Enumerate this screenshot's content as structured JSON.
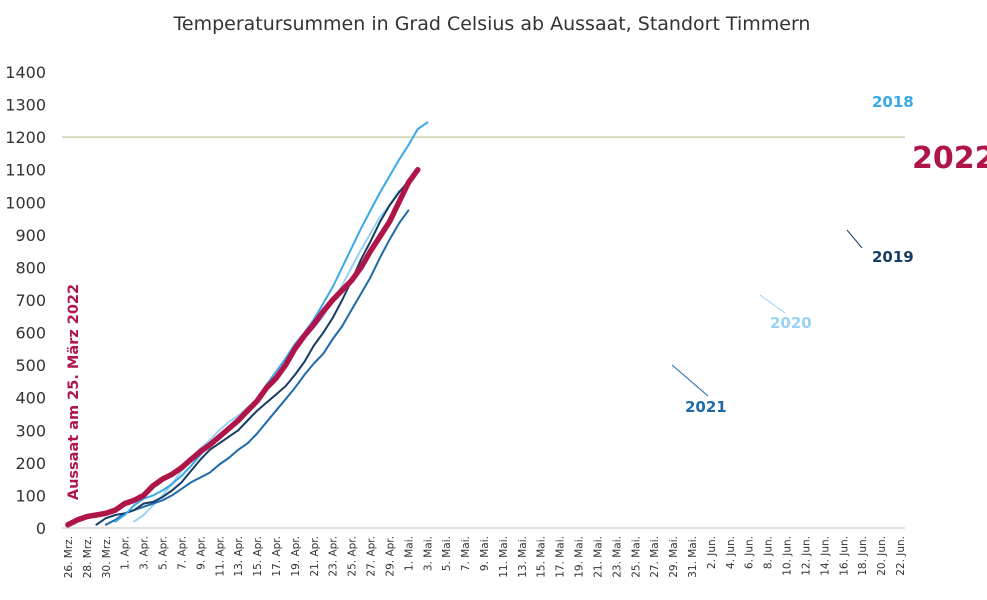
{
  "chart_data": {
    "type": "line",
    "title": "Temperatursummen in Grad Celsius ab Aussaat, Standort Timmern",
    "side_label": "Aussaat am 25. März 2022",
    "ylim": [
      0,
      1400
    ],
    "yticks": [
      0,
      100,
      200,
      300,
      400,
      500,
      600,
      700,
      800,
      900,
      1000,
      1100,
      1200,
      1300,
      1400
    ],
    "ytick_labels": [
      "0",
      "100",
      "200",
      "300",
      "400",
      "500",
      "600",
      "700",
      "800",
      "900",
      "1000",
      "1100",
      "1200",
      "1300",
      "1400"
    ],
    "x_categories": [
      "26. Mrz.",
      "28. Mrz.",
      "30. Mrz.",
      "1. Apr.",
      "3. Apr.",
      "5. Apr.",
      "7. Apr.",
      "9. Apr.",
      "11. Apr.",
      "13. Apr.",
      "15. Apr.",
      "17. Apr.",
      "19. Apr.",
      "21. Apr.",
      "23. Apr.",
      "25. Apr.",
      "27. Apr.",
      "29. Apr.",
      "1. Mai.",
      "3. Mai.",
      "5. Mai.",
      "7. Mai.",
      "9. Mai.",
      "11. Mai.",
      "13. Mai.",
      "15. Mai.",
      "17. Mai.",
      "19. Mai.",
      "21. Mai.",
      "23. Mai.",
      "25. Mai.",
      "27. Mai.",
      "29. Mai.",
      "31. Mai.",
      "2. Jun.",
      "4. Jun.",
      "6. Jun.",
      "8. Jun.",
      "10. Jun.",
      "12. Jun.",
      "14. Jun.",
      "16. Jun.",
      "18. Jun.",
      "20. Jun.",
      "22. Jun."
    ],
    "threshold": {
      "value": 1200,
      "color": "#c7d3a8"
    },
    "grid": false,
    "series": [
      {
        "name": "2018",
        "color": "#39a9e8",
        "width": 2,
        "values": [
          null,
          null,
          null,
          null,
          null,
          20,
          40,
          70,
          90,
          100,
          115,
          135,
          160,
          190,
          225,
          255,
          280,
          310,
          335,
          360,
          395,
          440,
          480,
          520,
          565,
          600,
          640,
          690,
          740,
          800,
          860,
          920,
          975,
          1030,
          1080,
          1130,
          1175,
          1225,
          1245
        ]
      },
      {
        "name": "2019",
        "color": "#163e64",
        "width": 2,
        "values": [
          null,
          null,
          null,
          10,
          30,
          40,
          45,
          55,
          75,
          80,
          95,
          115,
          140,
          175,
          210,
          240,
          260,
          280,
          300,
          330,
          360,
          385,
          410,
          435,
          470,
          510,
          560,
          600,
          645,
          700,
          760,
          825,
          880,
          940,
          990,
          1030,
          1065
        ]
      },
      {
        "name": "2020",
        "color": "#9bd1f2",
        "width": 2,
        "values": [
          null,
          null,
          null,
          null,
          null,
          null,
          null,
          20,
          40,
          70,
          100,
          135,
          175,
          205,
          245,
          270,
          300,
          325,
          345,
          370,
          395,
          430,
          460,
          500,
          545,
          585,
          615,
          650,
          700,
          745,
          800,
          855,
          905,
          955,
          990,
          1035
        ]
      },
      {
        "name": "2021",
        "color": "#1f6aa8",
        "width": 2,
        "values": [
          null,
          null,
          null,
          null,
          10,
          25,
          45,
          55,
          65,
          75,
          85,
          100,
          120,
          140,
          155,
          170,
          195,
          215,
          240,
          260,
          290,
          325,
          360,
          395,
          430,
          470,
          505,
          535,
          580,
          620,
          670,
          720,
          770,
          830,
          885,
          935,
          975
        ]
      },
      {
        "name": "2022",
        "color": "#b0154a",
        "width": 5.5,
        "values": [
          10,
          25,
          35,
          40,
          45,
          55,
          75,
          85,
          100,
          130,
          150,
          165,
          185,
          210,
          235,
          255,
          280,
          305,
          330,
          360,
          390,
          430,
          460,
          500,
          550,
          590,
          625,
          665,
          700,
          730,
          760,
          800,
          850,
          895,
          940,
          1000,
          1060,
          1100
        ]
      }
    ]
  }
}
